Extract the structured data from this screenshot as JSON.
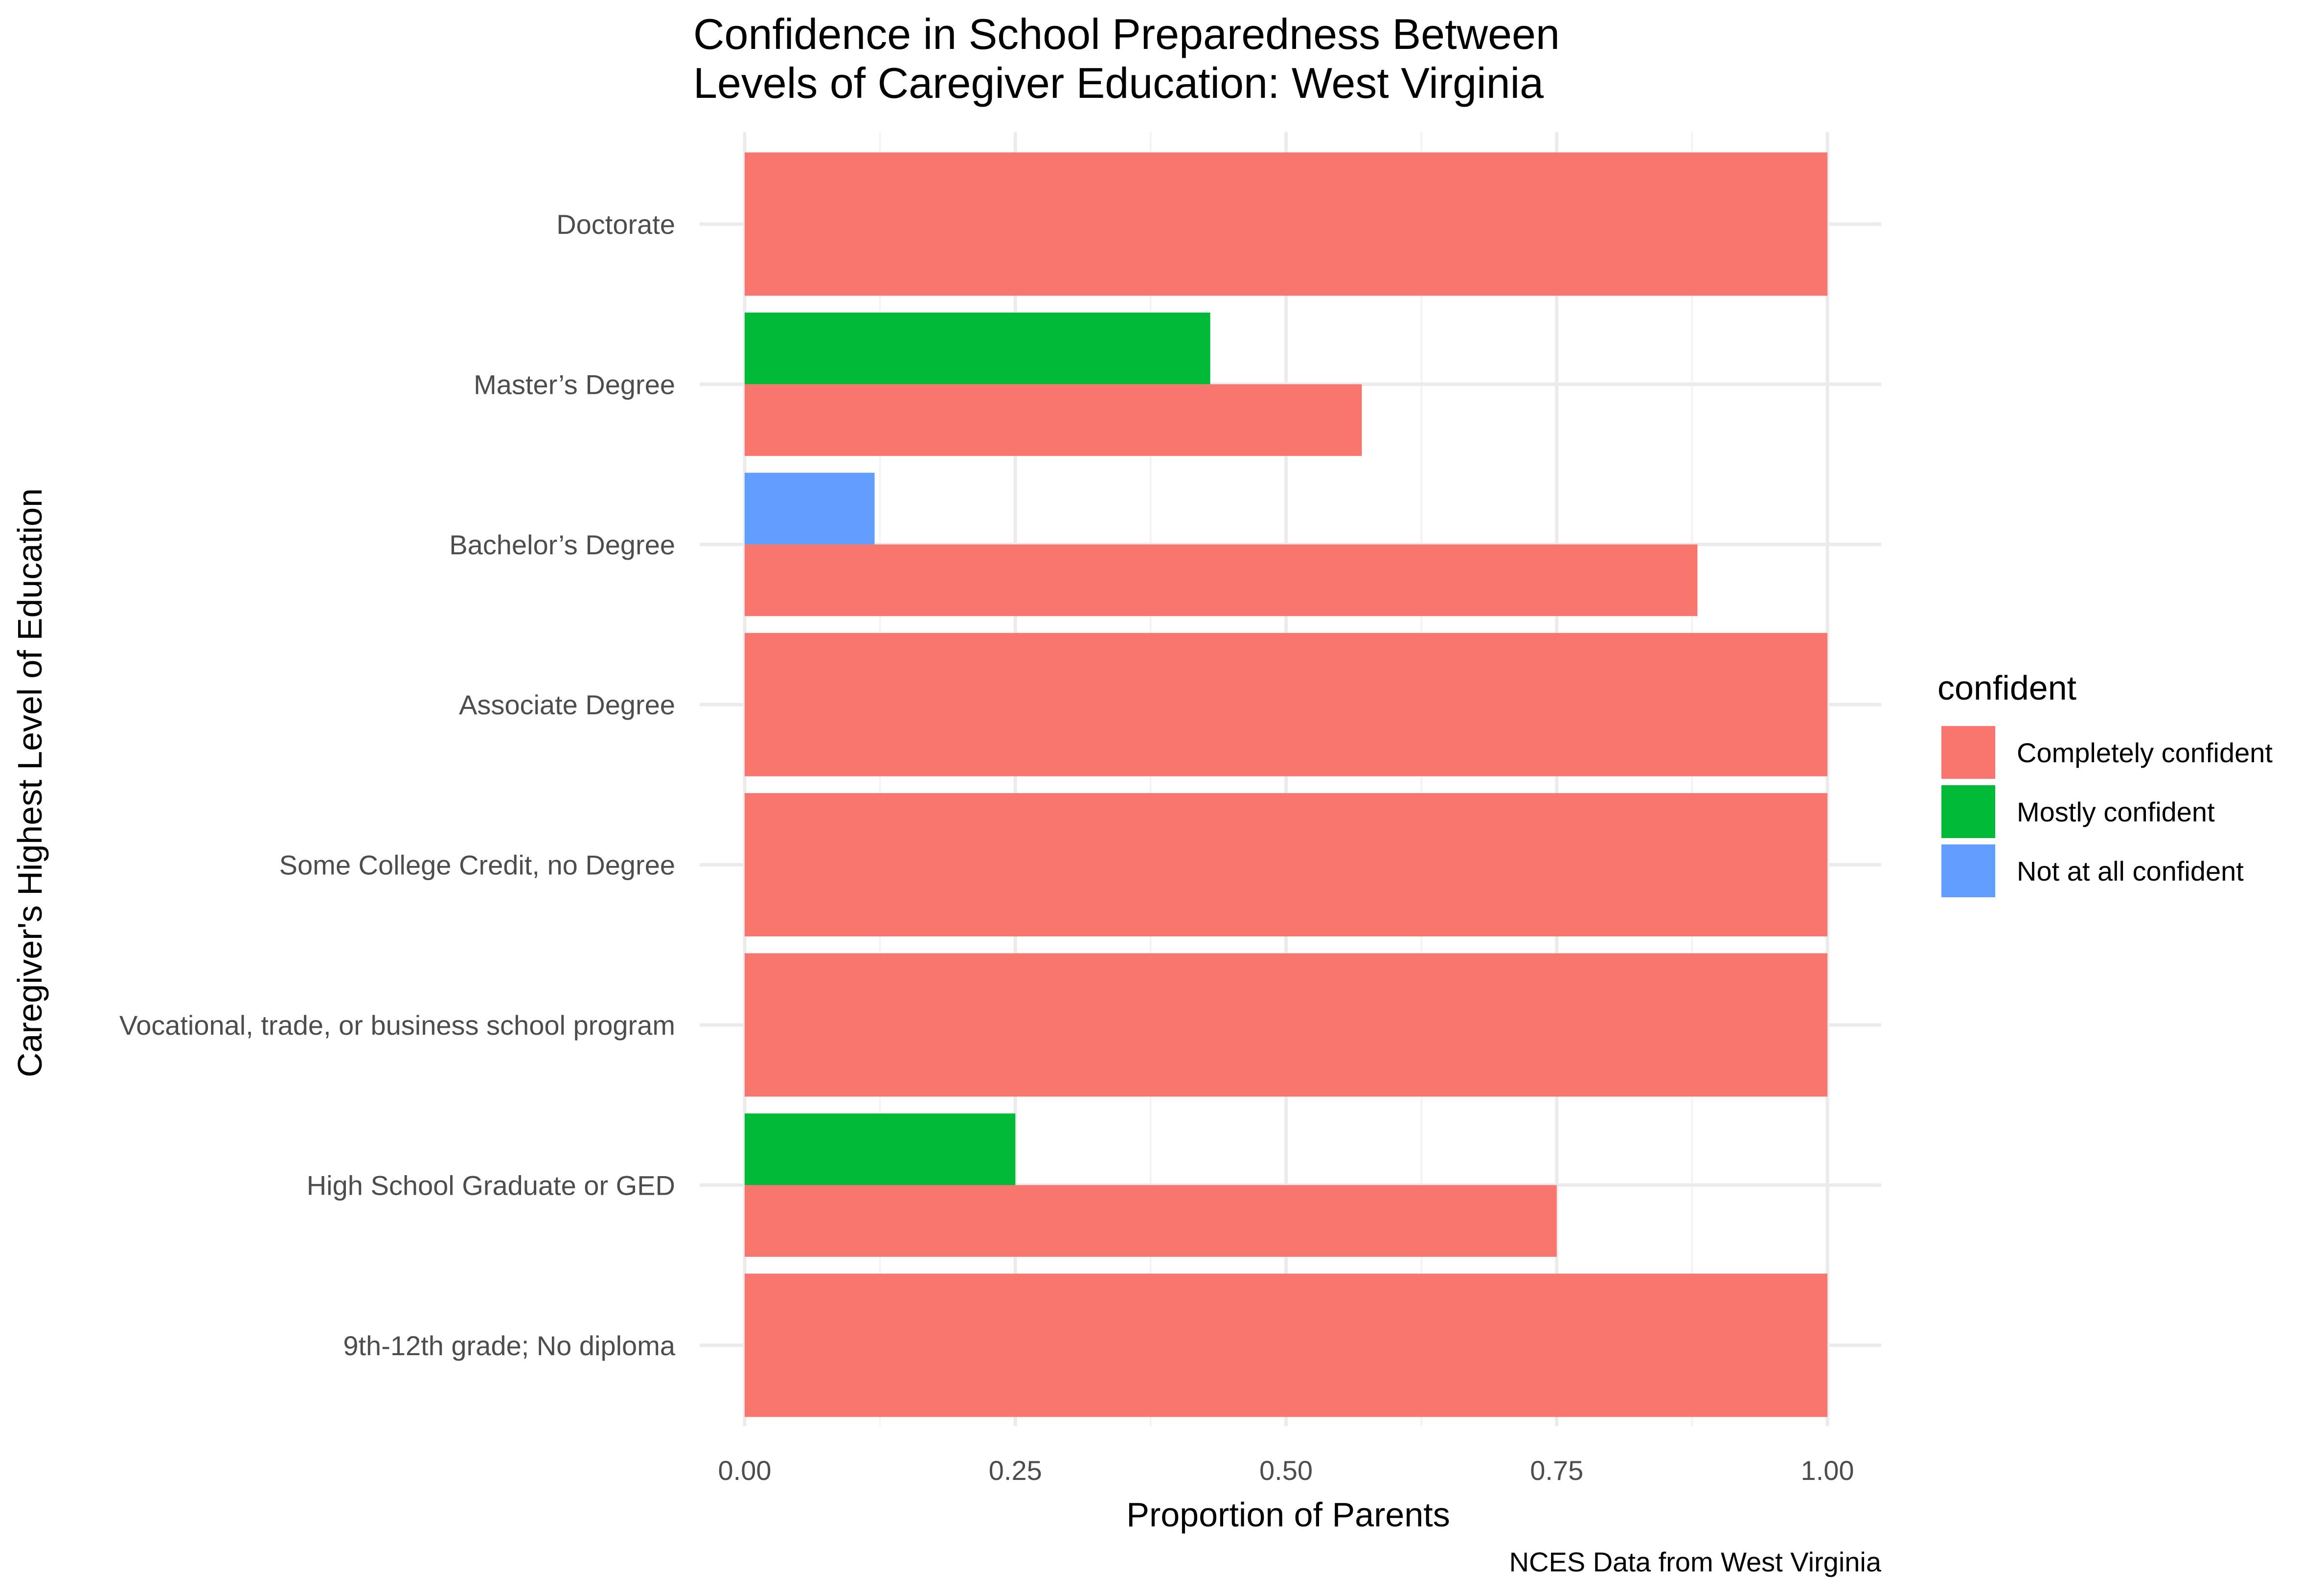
{
  "chart_data": {
    "type": "bar",
    "orientation": "horizontal",
    "title": [
      "Confidence in School Preparedness Between",
      "Levels of Caregiver Education: West Virginia"
    ],
    "xlabel": "Proportion of Parents",
    "ylabel": "Caregiver's Highest Level of Education",
    "caption": "NCES Data from West Virginia",
    "xlim": [
      0,
      1
    ],
    "xticks": [
      0,
      0.25,
      0.5,
      0.75,
      1
    ],
    "xtick_labels": [
      "0.00",
      "0.25",
      "0.50",
      "0.75",
      "1.00"
    ],
    "grid": true,
    "categories": [
      "Doctorate",
      "Master’s Degree",
      "Bachelor’s Degree",
      "Associate Degree",
      "Some College Credit, no Degree",
      "Vocational, trade, or business school program",
      "High School Graduate or GED",
      "9th-12th grade; No diploma"
    ],
    "legend": {
      "title": "confident",
      "position": "right",
      "entries": [
        "Completely confident",
        "Mostly confident",
        "Not at all confident"
      ]
    },
    "series": [
      {
        "name": "Completely confident",
        "color": "#F8766D",
        "values": [
          1.0,
          0.57,
          0.88,
          1.0,
          1.0,
          1.0,
          0.75,
          1.0
        ]
      },
      {
        "name": "Mostly confident",
        "color": "#00BA38",
        "values": [
          null,
          0.43,
          null,
          null,
          null,
          null,
          0.25,
          null
        ]
      },
      {
        "name": "Not at all confident",
        "color": "#619CFF",
        "values": [
          null,
          null,
          0.12,
          null,
          null,
          null,
          null,
          null
        ]
      }
    ]
  }
}
